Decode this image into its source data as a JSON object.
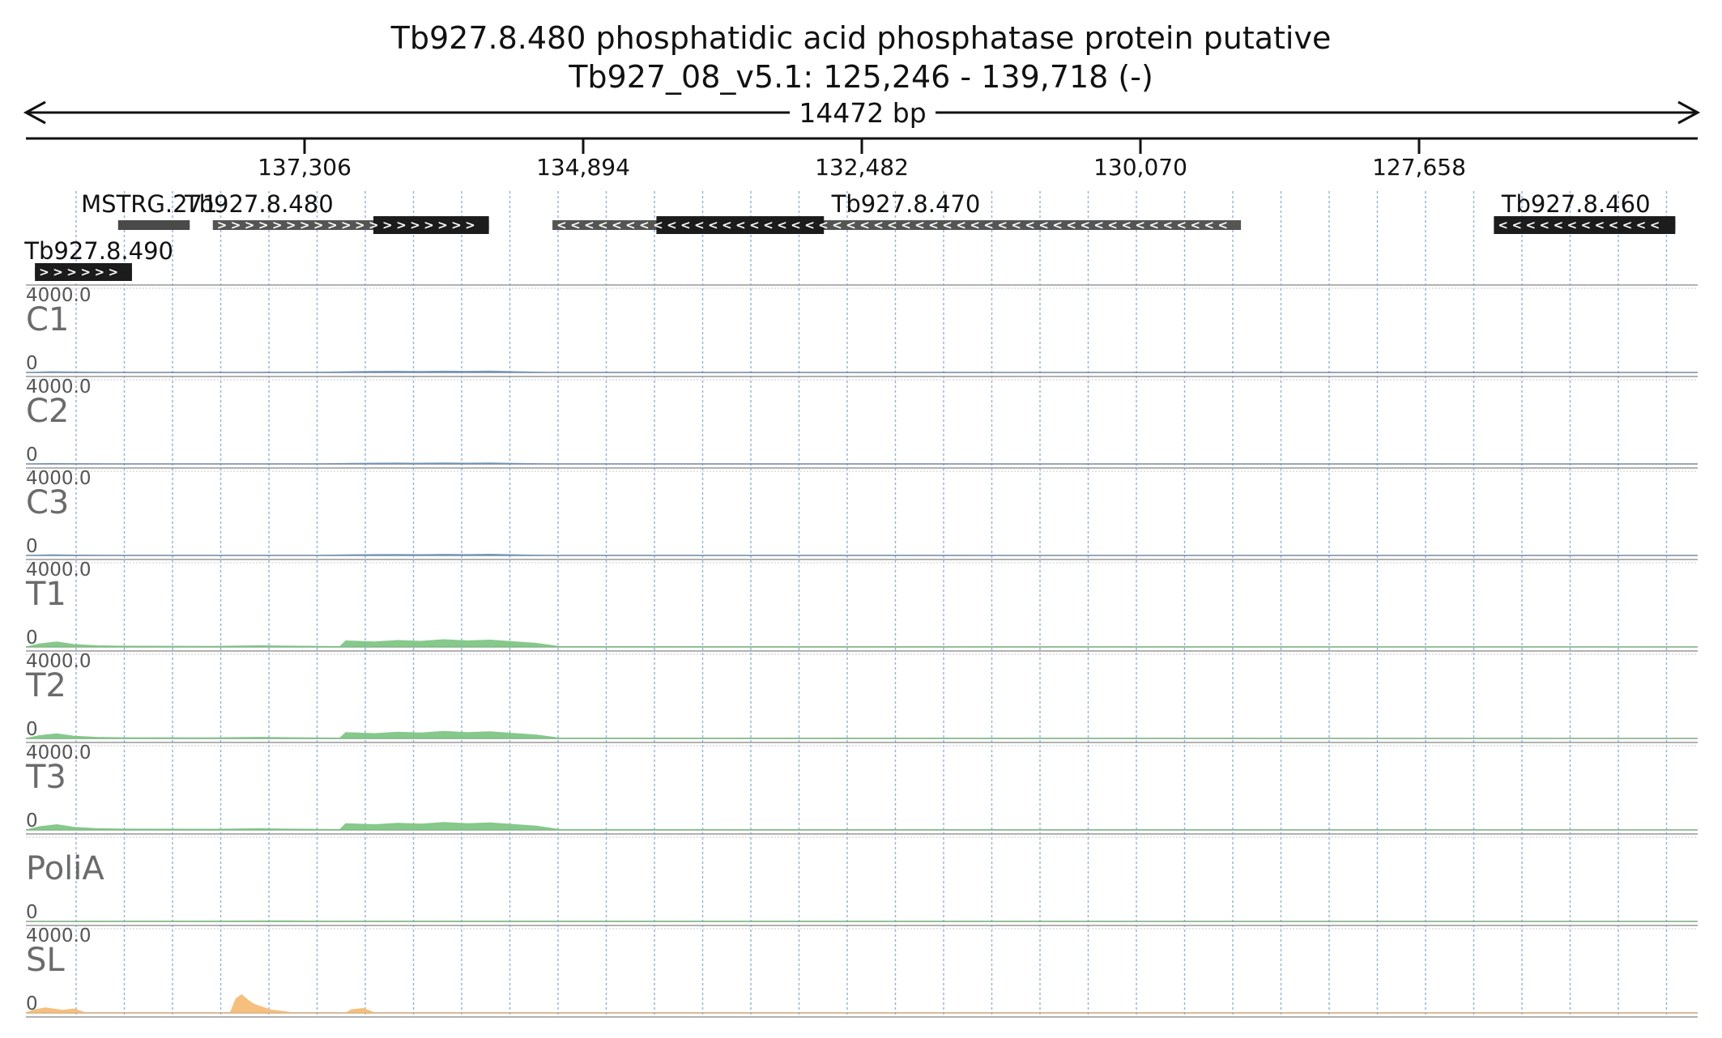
{
  "header": {
    "title_line1": "Tb927.8.480  phosphatidic acid phosphatase protein  putative",
    "title_line2": "Tb927_08_v5.1: 125,246 - 139,718 (-)",
    "ruler_label": "14472 bp"
  },
  "chart_data": {
    "type": "area",
    "title": "Tb927.8.480  phosphatidic acid phosphatase protein  putative",
    "subtitle": "Tb927_08_v5.1: 125,246 - 139,718 (-)",
    "region": {
      "chromosome": "Tb927_08_v5.1",
      "start": 125246,
      "end": 139718,
      "strand": "-",
      "length_bp": 14472
    },
    "x_axis": {
      "reversed": true,
      "min": 125246,
      "max": 139718
    },
    "ticks": [
      {
        "value": 137306,
        "label": "137,306"
      },
      {
        "value": 134894,
        "label": "134,894"
      },
      {
        "value": 132482,
        "label": "132,482"
      },
      {
        "value": 130070,
        "label": "130,070"
      },
      {
        "value": 127658,
        "label": "127,658"
      }
    ],
    "genes": [
      {
        "name": "MSTRG.271",
        "start": 138300,
        "end": 138920,
        "strand": "none",
        "row": 0,
        "label_at": 138650,
        "cds": []
      },
      {
        "name": "Tb927.8.480",
        "start": 135710,
        "end": 138100,
        "strand": "+",
        "row": 0,
        "label_at": 137700,
        "cds": [
          [
            135710,
            136710
          ]
        ]
      },
      {
        "name": "Tb927.8.470",
        "start": 129200,
        "end": 135160,
        "strand": "-",
        "row": 0,
        "label_at": 132100,
        "cds": [
          [
            132810,
            134260
          ]
        ]
      },
      {
        "name": "Tb927.8.460",
        "start": 125440,
        "end": 127010,
        "strand": "-",
        "row": 0,
        "label_at": 126300,
        "cds": [
          [
            125440,
            127010
          ]
        ]
      },
      {
        "name": "Tb927.8.490",
        "start": 138800,
        "end": 139640,
        "strand": "+",
        "row": 1,
        "label_at": 139730,
        "cds": [
          [
            138800,
            139640
          ]
        ]
      }
    ],
    "tracks": [
      {
        "name": "C1",
        "color": "#6a8fb5",
        "ymax": 4000.0,
        "ymax_label": "4000.0",
        "ymin_label": "0",
        "x": [
          139718,
          139500,
          139300,
          139100,
          138900,
          137200,
          136900,
          136700,
          136500,
          136300,
          136100,
          135900,
          135700,
          135400,
          135200,
          125246
        ],
        "y": [
          0,
          40,
          25,
          10,
          5,
          8,
          40,
          55,
          60,
          50,
          65,
          55,
          70,
          30,
          5,
          0
        ]
      },
      {
        "name": "C2",
        "color": "#6a8fb5",
        "ymax": 4000.0,
        "ymax_label": "4000.0",
        "ymin_label": "0",
        "x": [
          139718,
          139500,
          139300,
          139100,
          138900,
          137200,
          136900,
          136700,
          136500,
          136300,
          136100,
          135900,
          135700,
          135400,
          135200,
          125246
        ],
        "y": [
          0,
          25,
          15,
          8,
          4,
          6,
          30,
          40,
          45,
          38,
          50,
          42,
          52,
          22,
          4,
          0
        ]
      },
      {
        "name": "C3",
        "color": "#6a8fb5",
        "ymax": 4000.0,
        "ymax_label": "4000.0",
        "ymin_label": "0",
        "x": [
          139718,
          139500,
          139300,
          139100,
          138900,
          137200,
          136900,
          136700,
          136500,
          136300,
          136100,
          135900,
          135700,
          135400,
          135200,
          125246
        ],
        "y": [
          0,
          35,
          20,
          8,
          4,
          6,
          35,
          45,
          50,
          42,
          55,
          45,
          60,
          25,
          4,
          0
        ]
      },
      {
        "name": "T1",
        "color": "#79c47f",
        "ymax": 4000.0,
        "ymax_label": "4000.0",
        "ymin_label": "0",
        "x": [
          139718,
          139600,
          139450,
          139300,
          139100,
          138900,
          138100,
          137700,
          137400,
          137000,
          136950,
          136700,
          136500,
          136300,
          136100,
          135900,
          135700,
          135500,
          135300,
          135100,
          125246
        ],
        "y": [
          0,
          150,
          250,
          120,
          60,
          40,
          30,
          60,
          40,
          20,
          300,
          250,
          320,
          280,
          360,
          300,
          340,
          260,
          180,
          20,
          0
        ]
      },
      {
        "name": "T2",
        "color": "#79c47f",
        "ymax": 4000.0,
        "ymax_label": "4000.0",
        "ymin_label": "0",
        "x": [
          139718,
          139600,
          139450,
          139300,
          139100,
          138900,
          138100,
          137700,
          137400,
          137000,
          136950,
          136700,
          136500,
          136300,
          136100,
          135900,
          135700,
          135500,
          135300,
          135100,
          125246
        ],
        "y": [
          0,
          140,
          230,
          110,
          55,
          35,
          30,
          55,
          35,
          20,
          290,
          240,
          310,
          270,
          350,
          290,
          330,
          250,
          170,
          20,
          0
        ]
      },
      {
        "name": "T3",
        "color": "#79c47f",
        "ymax": 4000.0,
        "ymax_label": "4000.0",
        "ymin_label": "0",
        "x": [
          139718,
          139600,
          139450,
          139300,
          139100,
          138900,
          138100,
          137700,
          137400,
          137000,
          136950,
          136700,
          136500,
          136300,
          136100,
          135900,
          135700,
          135500,
          135300,
          135100,
          125246
        ],
        "y": [
          0,
          160,
          260,
          130,
          65,
          45,
          35,
          60,
          40,
          22,
          310,
          260,
          330,
          290,
          370,
          310,
          350,
          270,
          190,
          22,
          0
        ]
      },
      {
        "name": "PoliA",
        "color": "#79c47f",
        "ymax": null,
        "ymax_label": "",
        "ymin_label": "0",
        "x": [
          139718,
          138100,
          137500,
          137000,
          125246
        ],
        "y": [
          0,
          20,
          30,
          15,
          0
        ]
      },
      {
        "name": "SL",
        "color": "#f5b971",
        "ymax": 4000.0,
        "ymax_label": "4000.0",
        "ymin_label": "0",
        "x": [
          139718,
          139650,
          139550,
          139400,
          139300,
          139200,
          137950,
          137900,
          137850,
          137800,
          137750,
          137700,
          137650,
          137600,
          137500,
          137400,
          136950,
          136900,
          136800,
          136750,
          136700,
          125246
        ],
        "y": [
          0,
          150,
          250,
          130,
          200,
          0,
          0,
          700,
          900,
          650,
          450,
          350,
          250,
          150,
          80,
          0,
          0,
          160,
          220,
          120,
          0,
          0
        ]
      }
    ]
  }
}
